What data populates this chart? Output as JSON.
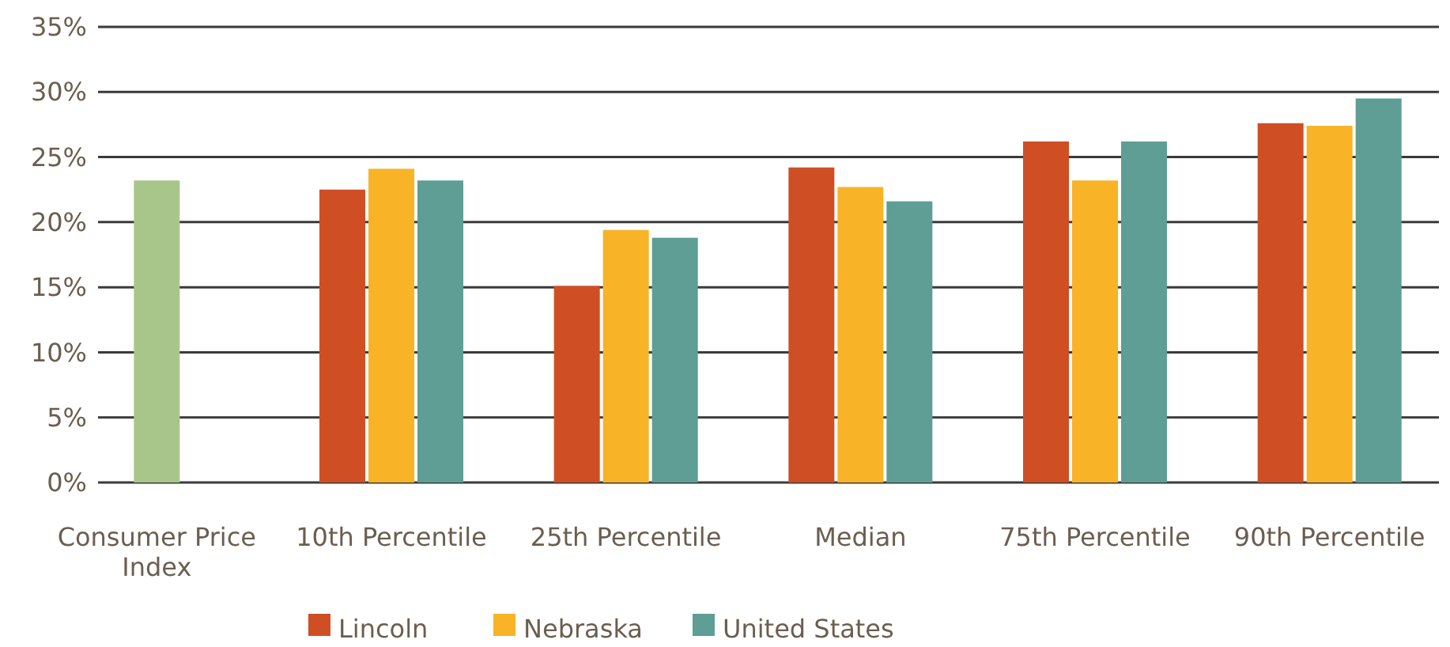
{
  "chart_data": {
    "type": "bar",
    "categories": [
      "Consumer Price Index",
      "10th Percentile",
      "25th Percentile",
      "Median",
      "75th Percentile",
      "90th Percentile"
    ],
    "series": [
      {
        "color": "#a9c68a",
        "values": [
          23.2,
          null,
          null,
          null,
          null,
          null
        ]
      },
      {
        "name": "Lincoln",
        "color": "#d04e24",
        "values": [
          null,
          22.5,
          15.1,
          24.2,
          26.2,
          27.6
        ]
      },
      {
        "name": "Nebraska",
        "color": "#f8b327",
        "values": [
          null,
          24.1,
          19.4,
          22.7,
          23.2,
          27.4
        ]
      },
      {
        "name": "United States",
        "color": "#5e9e94",
        "values": [
          null,
          23.2,
          18.8,
          21.6,
          26.2,
          29.5
        ]
      }
    ],
    "ylim": [
      0,
      35
    ],
    "yticks": [
      {
        "value": 0,
        "label": "0%"
      },
      {
        "value": 5,
        "label": "5%"
      },
      {
        "value": 10,
        "label": "10%"
      },
      {
        "value": 15,
        "label": "15%"
      },
      {
        "value": 20,
        "label": "20%"
      },
      {
        "value": 25,
        "label": "25%"
      },
      {
        "value": 30,
        "label": "30%"
      },
      {
        "value": 35,
        "label": "35%"
      }
    ],
    "grid": "y",
    "legend": "bottom"
  }
}
